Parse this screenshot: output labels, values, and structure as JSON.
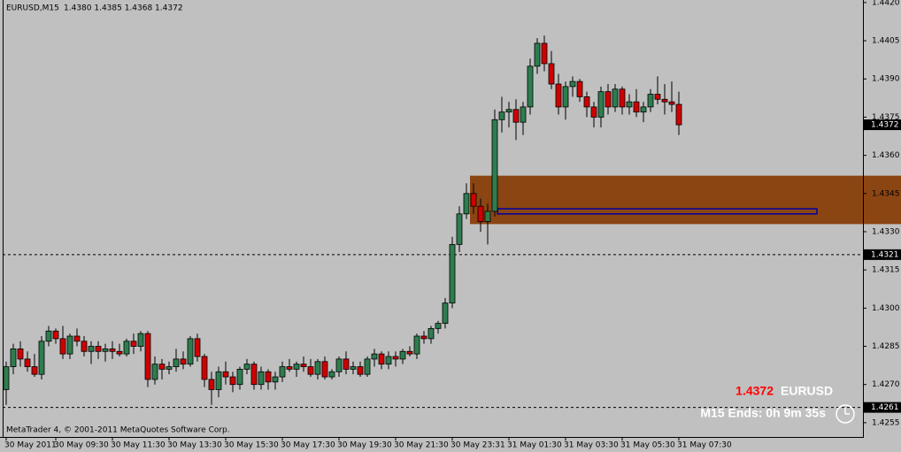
{
  "chart_data": {
    "type": "candlestick",
    "symbol": "EURUSD,M15",
    "header_prices": "1.4380 1.4385 1.4368 1.4372",
    "footer": "MetaTrader 4, © 2001-2011 MetaQuotes Software Corp.",
    "info_price": "1.4372",
    "info_symbol": "EURUSD",
    "info_timer": "M15 Ends: 0h 9m 35s",
    "bull_color": "#2e7d4f",
    "bear_color": "#d00000",
    "zone_color": "#8b4513",
    "band_color": "#0000a0",
    "ylim": [
      1.42494,
      1.4421
    ],
    "xlim": [
      -0.5,
      121
    ],
    "yticks": [
      {
        "value": 1.442,
        "label": "1.4420"
      },
      {
        "value": 1.4405,
        "label": "1.4405"
      },
      {
        "value": 1.439,
        "label": "1.4390"
      },
      {
        "value": 1.4375,
        "label": "1.4375"
      },
      {
        "value": 1.436,
        "label": "1.4360"
      },
      {
        "value": 1.4345,
        "label": "1.4345"
      },
      {
        "value": 1.433,
        "label": "1.4330"
      },
      {
        "value": 1.4315,
        "label": "1.4315"
      },
      {
        "value": 1.43,
        "label": "1.4300"
      },
      {
        "value": 1.4285,
        "label": "1.4285"
      },
      {
        "value": 1.427,
        "label": "1.4270"
      },
      {
        "value": 1.4255,
        "label": "1.4255"
      }
    ],
    "xticks": [
      {
        "value": 0,
        "label": "30 May 2011"
      },
      {
        "value": 7,
        "label": "30 May 09:30"
      },
      {
        "value": 15,
        "label": "30 May 11:30"
      },
      {
        "value": 23,
        "label": "30 May 13:30"
      },
      {
        "value": 31,
        "label": "30 May 15:30"
      },
      {
        "value": 39,
        "label": "30 May 17:30"
      },
      {
        "value": 47,
        "label": "30 May 19:30"
      },
      {
        "value": 55,
        "label": "30 May 21:30"
      },
      {
        "value": 63,
        "label": "30 May 23:31"
      },
      {
        "value": 71,
        "label": "31 May 01:30"
      },
      {
        "value": 79,
        "label": "31 May 03:30"
      },
      {
        "value": 87,
        "label": "31 May 05:30"
      },
      {
        "value": 95,
        "label": "31 May 07:30"
      }
    ],
    "price_labels": [
      {
        "value": 1.4372,
        "label": "1.4372"
      },
      {
        "value": 1.4321,
        "label": "1.4321"
      },
      {
        "value": 1.4261,
        "label": "1.4261"
      }
    ],
    "zone": {
      "top": 1.4352,
      "bottom": 1.4333,
      "start": 65.5
    },
    "band": {
      "top": 1.4339,
      "bottom": 1.4337,
      "start": 69.4,
      "end": 114.5
    },
    "candles": [
      [
        1.4268,
        1.4279,
        1.4262,
        1.4277
      ],
      [
        1.4277,
        1.4286,
        1.4274,
        1.4284
      ],
      [
        1.4284,
        1.4287,
        1.4277,
        1.428
      ],
      [
        1.428,
        1.4283,
        1.4275,
        1.4277
      ],
      [
        1.4277,
        1.4282,
        1.4273,
        1.4274
      ],
      [
        1.4274,
        1.4289,
        1.4272,
        1.4287
      ],
      [
        1.4287,
        1.4293,
        1.4285,
        1.4291
      ],
      [
        1.4291,
        1.4292,
        1.4286,
        1.4288
      ],
      [
        1.4288,
        1.4293,
        1.428,
        1.4282
      ],
      [
        1.4282,
        1.429,
        1.428,
        1.4289
      ],
      [
        1.4289,
        1.4292,
        1.4285,
        1.4287
      ],
      [
        1.4287,
        1.4289,
        1.4281,
        1.4283
      ],
      [
        1.4283,
        1.4287,
        1.4278,
        1.4285
      ],
      [
        1.4285,
        1.4287,
        1.428,
        1.4283
      ],
      [
        1.4283,
        1.4286,
        1.4279,
        1.4284
      ],
      [
        1.4284,
        1.4287,
        1.428,
        1.4283
      ],
      [
        1.4283,
        1.4286,
        1.4281,
        1.4282
      ],
      [
        1.4282,
        1.4288,
        1.4281,
        1.4287
      ],
      [
        1.4287,
        1.429,
        1.4282,
        1.4285
      ],
      [
        1.4285,
        1.4291,
        1.4283,
        1.429
      ],
      [
        1.429,
        1.4291,
        1.4269,
        1.4272
      ],
      [
        1.4272,
        1.4281,
        1.427,
        1.4278
      ],
      [
        1.4278,
        1.428,
        1.4272,
        1.4276
      ],
      [
        1.4276,
        1.4279,
        1.4274,
        1.4277
      ],
      [
        1.4277,
        1.4284,
        1.4275,
        1.428
      ],
      [
        1.428,
        1.4283,
        1.4276,
        1.4278
      ],
      [
        1.4278,
        1.4289,
        1.4277,
        1.4288
      ],
      [
        1.4288,
        1.429,
        1.4279,
        1.4281
      ],
      [
        1.4281,
        1.4282,
        1.4269,
        1.4272
      ],
      [
        1.4272,
        1.4275,
        1.4262,
        1.4268
      ],
      [
        1.4268,
        1.4277,
        1.4265,
        1.4275
      ],
      [
        1.4275,
        1.4279,
        1.427,
        1.4273
      ],
      [
        1.4273,
        1.4275,
        1.4267,
        1.427
      ],
      [
        1.427,
        1.4277,
        1.4268,
        1.4276
      ],
      [
        1.4276,
        1.428,
        1.4274,
        1.4278
      ],
      [
        1.4278,
        1.4279,
        1.4268,
        1.427
      ],
      [
        1.427,
        1.4277,
        1.4268,
        1.4275
      ],
      [
        1.4275,
        1.4276,
        1.4268,
        1.4271
      ],
      [
        1.4271,
        1.4275,
        1.4268,
        1.4273
      ],
      [
        1.4273,
        1.4279,
        1.4271,
        1.4277
      ],
      [
        1.4277,
        1.428,
        1.4275,
        1.4276
      ],
      [
        1.4276,
        1.4279,
        1.4273,
        1.4278
      ],
      [
        1.4278,
        1.4281,
        1.4275,
        1.4277
      ],
      [
        1.4277,
        1.428,
        1.4273,
        1.4274
      ],
      [
        1.4274,
        1.428,
        1.4272,
        1.4279
      ],
      [
        1.4279,
        1.4281,
        1.4272,
        1.4273
      ],
      [
        1.4273,
        1.4276,
        1.4272,
        1.4275
      ],
      [
        1.4275,
        1.4281,
        1.4273,
        1.428
      ],
      [
        1.428,
        1.4283,
        1.4274,
        1.4276
      ],
      [
        1.4276,
        1.4279,
        1.4274,
        1.4277
      ],
      [
        1.4277,
        1.4279,
        1.4273,
        1.4274
      ],
      [
        1.4274,
        1.4281,
        1.4273,
        1.428
      ],
      [
        1.428,
        1.4284,
        1.4277,
        1.4282
      ],
      [
        1.4282,
        1.4283,
        1.4276,
        1.4278
      ],
      [
        1.4278,
        1.4283,
        1.4276,
        1.4281
      ],
      [
        1.4281,
        1.4283,
        1.4277,
        1.428
      ],
      [
        1.428,
        1.4284,
        1.4278,
        1.4283
      ],
      [
        1.4283,
        1.4285,
        1.4281,
        1.4282
      ],
      [
        1.4282,
        1.429,
        1.428,
        1.4289
      ],
      [
        1.4289,
        1.4291,
        1.4286,
        1.4288
      ],
      [
        1.4288,
        1.4293,
        1.4286,
        1.4292
      ],
      [
        1.4292,
        1.4295,
        1.429,
        1.4294
      ],
      [
        1.4294,
        1.4304,
        1.4292,
        1.4302
      ],
      [
        1.4302,
        1.4328,
        1.43,
        1.4325
      ],
      [
        1.4325,
        1.434,
        1.4322,
        1.4337
      ],
      [
        1.4337,
        1.4349,
        1.4335,
        1.4345
      ],
      [
        1.4345,
        1.4349,
        1.4337,
        1.434
      ],
      [
        1.434,
        1.4343,
        1.433,
        1.4334
      ],
      [
        1.4334,
        1.4341,
        1.4325,
        1.4338
      ],
      [
        1.4338,
        1.4378,
        1.4336,
        1.4374
      ],
      [
        1.4374,
        1.4383,
        1.4369,
        1.4377
      ],
      [
        1.4377,
        1.4381,
        1.4371,
        1.4378
      ],
      [
        1.4378,
        1.4382,
        1.4366,
        1.4373
      ],
      [
        1.4373,
        1.4381,
        1.4368,
        1.4379
      ],
      [
        1.4379,
        1.4398,
        1.4376,
        1.4395
      ],
      [
        1.4395,
        1.4406,
        1.4392,
        1.4404
      ],
      [
        1.4404,
        1.4407,
        1.4393,
        1.4396
      ],
      [
        1.4396,
        1.4401,
        1.4386,
        1.4388
      ],
      [
        1.4388,
        1.4392,
        1.4376,
        1.4379
      ],
      [
        1.4379,
        1.4389,
        1.4374,
        1.4387
      ],
      [
        1.4387,
        1.4391,
        1.4383,
        1.4389
      ],
      [
        1.4389,
        1.439,
        1.4381,
        1.4383
      ],
      [
        1.4383,
        1.4385,
        1.4375,
        1.4379
      ],
      [
        1.4379,
        1.4381,
        1.4371,
        1.4375
      ],
      [
        1.4375,
        1.4387,
        1.4371,
        1.4385
      ],
      [
        1.4385,
        1.4388,
        1.4376,
        1.4379
      ],
      [
        1.4379,
        1.4388,
        1.4377,
        1.4386
      ],
      [
        1.4386,
        1.4387,
        1.4376,
        1.4379
      ],
      [
        1.4379,
        1.4384,
        1.4376,
        1.4381
      ],
      [
        1.4381,
        1.4386,
        1.4375,
        1.4377
      ],
      [
        1.4377,
        1.4381,
        1.4373,
        1.4379
      ],
      [
        1.4379,
        1.4386,
        1.4377,
        1.4384
      ],
      [
        1.4384,
        1.4391,
        1.438,
        1.4382
      ],
      [
        1.4382,
        1.4388,
        1.4376,
        1.4381
      ],
      [
        1.4381,
        1.4389,
        1.4377,
        1.438
      ],
      [
        1.438,
        1.4385,
        1.4368,
        1.4372
      ]
    ]
  }
}
